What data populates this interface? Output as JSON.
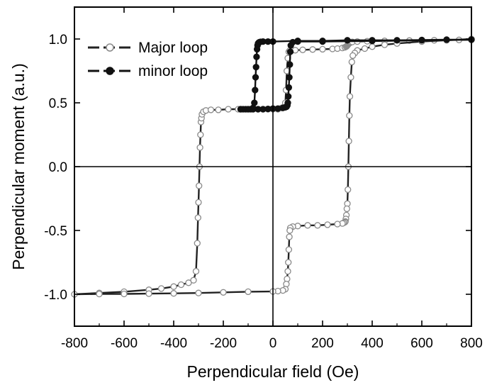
{
  "chart_data": {
    "type": "scatter",
    "title": "",
    "xlabel": "Perpendicular field (Oe)",
    "ylabel": "Perpendicular moment (a.u.)",
    "xlim": [
      -800,
      800
    ],
    "ylim": [
      -1.25,
      1.25
    ],
    "xticks": [
      -800,
      -600,
      -400,
      -200,
      0,
      200,
      400,
      600,
      800
    ],
    "xtick_labels": [
      "-800",
      "-600",
      "-400",
      "-200",
      "0",
      "200",
      "400",
      "600",
      "800"
    ],
    "yticks": [
      -1.0,
      -0.5,
      0.0,
      0.5,
      1.0
    ],
    "ytick_labels": [
      "-1.0",
      "-0.5",
      "0.0",
      "0.5",
      "1.0"
    ],
    "zero_lines": true,
    "grid": false,
    "legend_position": "top-left",
    "colors": {
      "major": "#8a8a8a",
      "major_line": "#222222",
      "minor": "#111111"
    },
    "series": [
      {
        "name": "Major loop",
        "marker": "open-circle",
        "branches": [
          {
            "x": [
              -800,
              -700,
              -600,
              -500,
              -450,
              -400,
              -370,
              -340,
              -320,
              -310,
              -305,
              -302,
              -300,
              -298,
              -296,
              -294,
              -292,
              -290,
              -288,
              -286,
              -280,
              -270,
              -250,
              -220,
              -180,
              -140,
              -100,
              -80,
              -60,
              -40,
              -20,
              0,
              20,
              35,
              45,
              50,
              53,
              56,
              60,
              64,
              68,
              75,
              90,
              120,
              160,
              200,
              240,
              260,
              280,
              290,
              295,
              298,
              300,
              302,
              304,
              306,
              308,
              310,
              312,
              315,
              320,
              340,
              380,
              450,
              550,
              650,
              750,
              800
            ],
            "y": [
              -1.0,
              -0.99,
              -0.98,
              -0.965,
              -0.955,
              -0.94,
              -0.925,
              -0.91,
              -0.89,
              -0.82,
              -0.6,
              -0.4,
              -0.28,
              -0.15,
              0.0,
              0.15,
              0.25,
              0.35,
              0.38,
              0.41,
              0.43,
              0.44,
              0.445,
              0.445,
              0.45,
              0.45,
              0.45,
              0.45,
              0.45,
              0.45,
              0.45,
              0.45,
              0.45,
              0.46,
              0.47,
              0.5,
              0.6,
              0.75,
              0.85,
              0.9,
              0.91,
              0.91,
              0.912,
              0.915,
              0.918,
              0.92,
              0.922,
              0.925,
              0.93,
              0.935,
              0.94,
              0.945,
              0.95,
              0.955,
              0.96,
              0.965,
              0.968,
              0.97,
              0.972,
              0.975,
              0.977,
              0.98,
              0.983,
              0.985,
              0.988,
              0.99,
              0.993,
              0.995
            ]
          },
          {
            "x": [
              800,
              700,
              600,
              500,
              450,
              400,
              370,
              340,
              330,
              322,
              318,
              314,
              310,
              308,
              306,
              304,
              302,
              300,
              298,
              296,
              294,
              292,
              290,
              285,
              280,
              260,
              220,
              180,
              140,
              100,
              80,
              70,
              68,
              66,
              64,
              62,
              60,
              57,
              54,
              50,
              40,
              20,
              0,
              -100,
              -200,
              -300,
              -400,
              -500,
              -600,
              -700,
              -800
            ],
            "y": [
              1.0,
              0.99,
              0.98,
              0.965,
              0.955,
              0.94,
              0.925,
              0.91,
              0.89,
              0.87,
              0.82,
              0.7,
              0.55,
              0.4,
              0.2,
              0.0,
              -0.18,
              -0.29,
              -0.33,
              -0.38,
              -0.41,
              -0.43,
              -0.435,
              -0.44,
              -0.445,
              -0.45,
              -0.455,
              -0.46,
              -0.46,
              -0.465,
              -0.47,
              -0.48,
              -0.5,
              -0.55,
              -0.65,
              -0.75,
              -0.82,
              -0.88,
              -0.92,
              -0.96,
              -0.97,
              -0.975,
              -0.978,
              -0.98,
              -0.985,
              -0.99,
              -0.993,
              -0.995,
              -0.997,
              -0.998,
              -1.0
            ]
          }
        ]
      },
      {
        "name": "minor loop",
        "marker": "filled-circle",
        "branches": [
          {
            "x": [
              -130,
              -110,
              -90,
              -80,
              -75,
              -72,
              -70,
              -68,
              -66,
              -64,
              -62,
              -60,
              -58,
              -55,
              -50,
              -40,
              -20,
              0,
              100,
              200,
              300,
              400,
              500,
              600,
              700,
              800
            ],
            "y": [
              0.45,
              0.45,
              0.45,
              0.46,
              0.5,
              0.6,
              0.7,
              0.78,
              0.86,
              0.92,
              0.95,
              0.965,
              0.97,
              0.975,
              0.978,
              0.98,
              0.98,
              0.98,
              0.985,
              0.985,
              0.99,
              0.99,
              0.99,
              0.992,
              0.995,
              0.995
            ]
          },
          {
            "x": [
              800,
              600,
              400,
              200,
              100,
              80,
              72,
              70,
              68,
              66,
              64,
              62,
              60,
              58,
              55,
              50,
              40,
              20,
              0,
              -20,
              -40,
              -60,
              -80,
              -100,
              -120,
              -130
            ],
            "y": [
              0.995,
              0.99,
              0.985,
              0.98,
              0.98,
              0.975,
              0.95,
              0.9,
              0.8,
              0.7,
              0.62,
              0.55,
              0.5,
              0.48,
              0.47,
              0.465,
              0.46,
              0.455,
              0.455,
              0.452,
              0.45,
              0.45,
              0.45,
              0.45,
              0.45,
              0.45
            ]
          }
        ]
      }
    ]
  }
}
